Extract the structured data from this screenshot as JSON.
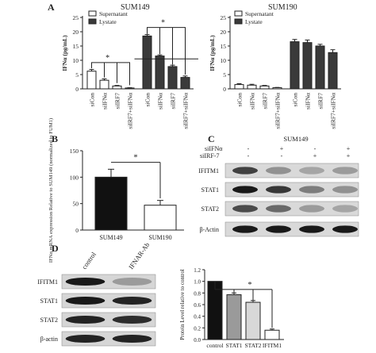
{
  "panels": {
    "A": "A",
    "B": "B",
    "C": "C",
    "D": "D"
  },
  "colors": {
    "black": "#111111",
    "dark": "#3a3a3a",
    "gray": "#9a9a9a",
    "light": "#e6e6e6",
    "white": "#ffffff"
  },
  "chart_data": [
    {
      "panel": "A-left",
      "type": "bar",
      "title": "SUM149",
      "ylabel": "IFNα (pg/mL)",
      "ylim": [
        0,
        25
      ],
      "yticks": [
        0,
        5,
        10,
        15,
        20,
        25
      ],
      "categories": [
        "siCon",
        "siIFNα",
        "siIRF7",
        "siIRF7+siIFNα"
      ],
      "series": [
        {
          "name": "Supernatant",
          "values": [
            6.2,
            3.0,
            1.0,
            0.3
          ],
          "errors": [
            0.6,
            0.5,
            0.2,
            0.1
          ]
        },
        {
          "name": "Lystate",
          "values": [
            18.5,
            11.5,
            7.8,
            4.0
          ],
          "errors": [
            0.5,
            0.4,
            0.5,
            0.5
          ]
        }
      ],
      "legend": "top-right",
      "significance": [
        "*",
        "*"
      ]
    },
    {
      "panel": "A-right",
      "type": "bar",
      "title": "SUM190",
      "ylabel": "IFNα (pg/mL)",
      "ylim": [
        0,
        25
      ],
      "yticks": [
        0,
        5,
        10,
        15,
        20,
        25
      ],
      "categories": [
        "siCon",
        "siIFNα",
        "siIRF7",
        "siIRF7+siIFNα"
      ],
      "series": [
        {
          "name": "Supernatant",
          "values": [
            1.5,
            1.3,
            1.0,
            0.4
          ],
          "errors": [
            0.3,
            0.3,
            0.2,
            0.1
          ]
        },
        {
          "name": "Lystate",
          "values": [
            16.5,
            16.2,
            15.0,
            12.7
          ],
          "errors": [
            0.8,
            0.9,
            0.6,
            1.0
          ]
        }
      ],
      "legend": "top-right"
    },
    {
      "panel": "B",
      "type": "bar",
      "ylabel": "IFNα mRNA expression Relative to SUM149 (normalized to FUM1)",
      "ylim": [
        0,
        150
      ],
      "yticks": [
        0,
        50,
        100,
        150
      ],
      "categories": [
        "SUM149",
        "SUM190"
      ],
      "values": [
        100,
        47
      ],
      "errors": [
        15,
        9
      ],
      "significance": "*"
    },
    {
      "panel": "D-chart",
      "type": "bar",
      "ylabel": "Protein Level relative to control",
      "ylim": [
        0,
        1.2
      ],
      "yticks": [
        0.0,
        0.2,
        0.4,
        0.6,
        0.8,
        1.0,
        1.2
      ],
      "ytick_labels": [
        "0.0",
        "0.2",
        "0.4",
        "0.6",
        "0.8",
        "1.0",
        "1.2"
      ],
      "categories": [
        "control",
        "STAT1",
        "STAT2",
        "IFITM1"
      ],
      "values": [
        1.0,
        0.77,
        0.64,
        0.16
      ],
      "errors": [
        0.0,
        0.03,
        0.03,
        0.02
      ],
      "significance": "*"
    }
  ],
  "blot_C": {
    "cell_line": "SUM149",
    "conditions": [
      {
        "label": "siIFNα",
        "lanes": [
          "-",
          "+",
          "-",
          "+"
        ]
      },
      {
        "label": "siIRF-7",
        "lanes": [
          "-",
          "-",
          "+",
          "+"
        ]
      }
    ],
    "rows": [
      {
        "label": "IFITM1",
        "intensity": [
          0.75,
          0.35,
          0.25,
          0.3
        ]
      },
      {
        "label": "STAT1",
        "intensity": [
          0.95,
          0.8,
          0.45,
          0.35
        ]
      },
      {
        "label": "STAT2",
        "intensity": [
          0.7,
          0.55,
          0.3,
          0.25
        ]
      },
      {
        "label": "β-Actin",
        "intensity": [
          0.95,
          0.95,
          0.95,
          0.95
        ]
      }
    ]
  },
  "blot_D": {
    "columns": [
      "control",
      "IFNAR-Ab"
    ],
    "rows": [
      {
        "label": "IFITM1",
        "intensity": [
          0.95,
          0.3
        ]
      },
      {
        "label": "STAT1",
        "intensity": [
          0.95,
          0.9
        ]
      },
      {
        "label": "STAT2",
        "intensity": [
          0.9,
          0.85
        ]
      },
      {
        "label": "β-actin",
        "intensity": [
          0.9,
          0.9
        ]
      }
    ]
  }
}
